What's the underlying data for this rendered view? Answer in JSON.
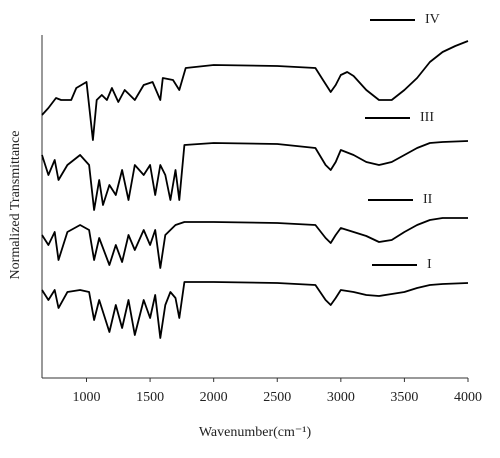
{
  "chart_data": {
    "type": "line",
    "xlabel": "Wavenumber(cm⁻¹)",
    "ylabel": "Normalized Transmittance",
    "xlim": [
      650,
      4000
    ],
    "xticks": [
      1000,
      1500,
      2000,
      2500,
      3000,
      3500,
      4000
    ],
    "ylim": [
      0,
      350
    ],
    "series": [
      {
        "name": "IV",
        "color": "#000000",
        "x": [
          650,
          700,
          760,
          800,
          880,
          920,
          1000,
          1050,
          1080,
          1120,
          1160,
          1200,
          1250,
          1300,
          1380,
          1450,
          1520,
          1580,
          1600,
          1680,
          1730,
          1780,
          2000,
          2500,
          2800,
          2860,
          2920,
          2960,
          3000,
          3050,
          3100,
          3200,
          3300,
          3400,
          3500,
          3600,
          3700,
          3800,
          3900,
          4000
        ],
        "values": [
          263,
          270,
          280,
          278,
          278,
          290,
          296,
          238,
          278,
          283,
          278,
          290,
          276,
          288,
          278,
          293,
          296,
          278,
          300,
          298,
          288,
          310,
          313,
          312,
          310,
          298,
          286,
          293,
          303,
          306,
          302,
          288,
          278,
          278,
          288,
          300,
          316,
          326,
          332,
          337
        ]
      },
      {
        "name": "III",
        "color": "#000000",
        "x": [
          650,
          700,
          750,
          780,
          850,
          950,
          1020,
          1060,
          1100,
          1130,
          1180,
          1230,
          1280,
          1330,
          1380,
          1450,
          1500,
          1540,
          1580,
          1620,
          1660,
          1700,
          1730,
          1770,
          2000,
          2500,
          2800,
          2880,
          2920,
          2960,
          3000,
          3100,
          3200,
          3300,
          3400,
          3500,
          3600,
          3700,
          3800,
          4000
        ],
        "values": [
          223,
          203,
          218,
          198,
          213,
          223,
          213,
          168,
          198,
          173,
          193,
          183,
          208,
          178,
          213,
          203,
          213,
          183,
          213,
          203,
          178,
          208,
          178,
          233,
          235,
          234,
          230,
          213,
          208,
          216,
          228,
          223,
          216,
          213,
          216,
          223,
          230,
          235,
          236,
          237
        ]
      },
      {
        "name": "II",
        "color": "#000000",
        "x": [
          650,
          700,
          750,
          780,
          850,
          950,
          1020,
          1060,
          1100,
          1180,
          1230,
          1280,
          1330,
          1380,
          1450,
          1500,
          1540,
          1580,
          1620,
          1700,
          1770,
          2000,
          2500,
          2800,
          2880,
          2920,
          2960,
          3000,
          3100,
          3200,
          3300,
          3400,
          3500,
          3600,
          3700,
          3800,
          4000
        ],
        "values": [
          143,
          133,
          146,
          118,
          146,
          153,
          148,
          118,
          140,
          113,
          133,
          116,
          143,
          128,
          148,
          133,
          148,
          110,
          143,
          153,
          156,
          156,
          155,
          153,
          140,
          135,
          143,
          150,
          146,
          142,
          136,
          138,
          146,
          153,
          158,
          160,
          160
        ]
      },
      {
        "name": "I",
        "color": "#000000",
        "x": [
          650,
          700,
          750,
          780,
          850,
          950,
          1020,
          1060,
          1100,
          1180,
          1230,
          1280,
          1330,
          1380,
          1450,
          1500,
          1540,
          1580,
          1620,
          1660,
          1700,
          1730,
          1770,
          2000,
          2500,
          2800,
          2880,
          2920,
          2960,
          3000,
          3100,
          3200,
          3300,
          3400,
          3500,
          3600,
          3700,
          3800,
          4000
        ],
        "values": [
          88,
          78,
          88,
          70,
          86,
          88,
          86,
          58,
          78,
          46,
          73,
          50,
          78,
          43,
          78,
          60,
          83,
          40,
          73,
          86,
          80,
          60,
          96,
          96,
          95,
          93,
          78,
          73,
          80,
          88,
          86,
          83,
          82,
          84,
          86,
          90,
          93,
          94,
          95
        ]
      }
    ]
  }
}
